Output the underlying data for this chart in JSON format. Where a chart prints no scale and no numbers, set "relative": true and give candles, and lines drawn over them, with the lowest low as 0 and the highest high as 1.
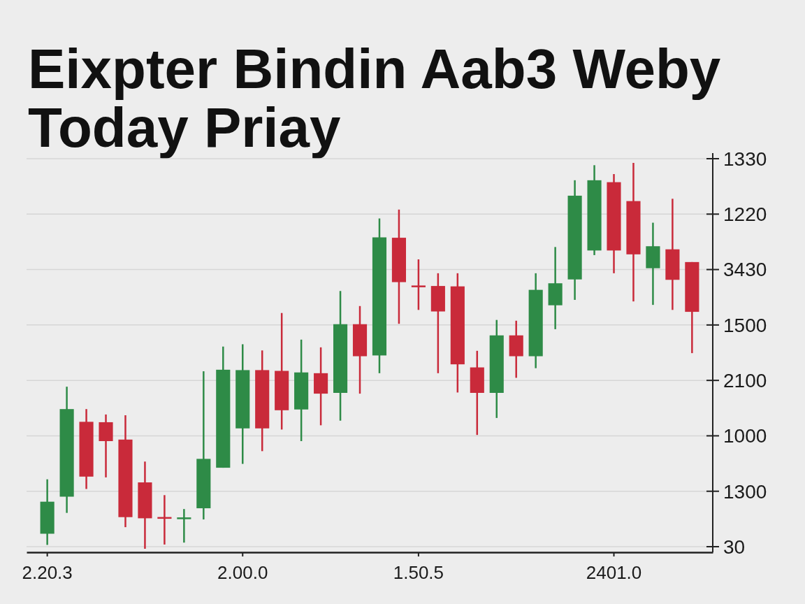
{
  "chart_data": {
    "type": "candlestick",
    "title": "Eixpter Bindin Aab3 Weby Today Priay",
    "categories": [
      "2.20.3",
      null,
      null,
      null,
      null,
      null,
      null,
      null,
      null,
      null,
      "2.00.0",
      null,
      null,
      null,
      null,
      null,
      null,
      null,
      null,
      "1.50.5",
      null,
      null,
      null,
      null,
      null,
      null,
      null,
      null,
      null,
      "2401.0",
      null,
      null,
      null,
      null
    ],
    "relative": true,
    "ohlc": [
      [
        0.039,
        0.18,
        0.01,
        0.122
      ],
      [
        0.135,
        0.42,
        0.093,
        0.362
      ],
      [
        0.329,
        0.362,
        0.155,
        0.187
      ],
      [
        0.328,
        0.348,
        0.185,
        0.279
      ],
      [
        0.283,
        0.346,
        0.056,
        0.082
      ],
      [
        0.172,
        0.226,
        0,
        0.079
      ],
      [
        0.08,
        0.139,
        0.011,
        0.08
      ],
      [
        0.079,
        0.103,
        0.016,
        0.079
      ],
      [
        0.105,
        0.46,
        0.076,
        0.233
      ],
      [
        0.21,
        0.524,
        0.21,
        0.464
      ],
      [
        0.312,
        0.53,
        0.22,
        0.463
      ],
      [
        0.463,
        0.514,
        0.253,
        0.312
      ],
      [
        0.461,
        0.611,
        0.309,
        0.359
      ],
      [
        0.361,
        0.542,
        0.279,
        0.457
      ],
      [
        0.455,
        0.522,
        0.32,
        0.402
      ],
      [
        0.404,
        0.668,
        0.332,
        0.582
      ],
      [
        0.582,
        0.629,
        0.402,
        0.499
      ],
      [
        0.501,
        0.856,
        0.455,
        0.807
      ],
      [
        0.806,
        0.879,
        0.583,
        0.691
      ],
      [
        0.68,
        0.75,
        0.619,
        0.68
      ],
      [
        0.681,
        0.714,
        0.455,
        0.615
      ],
      [
        0.68,
        0.714,
        0.405,
        0.478
      ],
      [
        0.47,
        0.513,
        0.295,
        0.404
      ],
      [
        0.404,
        0.593,
        0.339,
        0.553
      ],
      [
        0.553,
        0.591,
        0.443,
        0.499
      ],
      [
        0.499,
        0.714,
        0.468,
        0.671
      ],
      [
        0.631,
        0.782,
        0.569,
        0.688
      ],
      [
        0.698,
        0.955,
        0.645,
        0.915
      ],
      [
        0.773,
        0.994,
        0.761,
        0.955
      ],
      [
        0.95,
        0.971,
        0.714,
        0.773
      ],
      [
        0.901,
        1,
        0.641,
        0.763
      ],
      [
        0.727,
        0.845,
        0.632,
        0.784
      ],
      [
        0.776,
        0.907,
        0.619,
        0.697
      ],
      [
        0.743,
        0.743,
        0.507,
        0.614
      ]
    ],
    "colors": [
      "#2e8b47",
      "#2e8b47",
      "#c92a3a",
      "#c92a3a",
      "#c92a3a",
      "#c92a3a",
      "#c92a3a",
      "#2e8b47",
      "#2e8b47",
      "#2e8b47",
      "#2e8b47",
      "#c92a3a",
      "#c92a3a",
      "#2e8b47",
      "#c92a3a",
      "#2e8b47",
      "#c92a3a",
      "#2e8b47",
      "#c92a3a",
      "#c92a3a",
      "#c92a3a",
      "#c92a3a",
      "#c92a3a",
      "#2e8b47",
      "#c92a3a",
      "#2e8b47",
      "#2e8b47",
      "#2e8b47",
      "#2e8b47",
      "#c92a3a",
      "#c92a3a",
      "#2e8b47",
      "#c92a3a",
      "#c92a3a"
    ],
    "annotations": [
      "1330",
      "1220",
      "3430",
      "1500",
      "2100",
      "1000",
      "1300",
      "30"
    ],
    "grid": "y"
  }
}
